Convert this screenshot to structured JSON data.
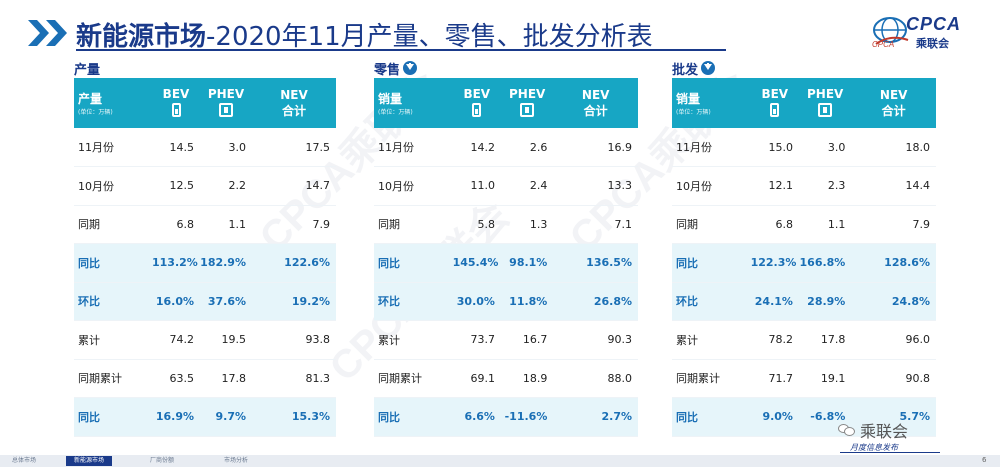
{
  "header": {
    "title_bold": "新能源市场",
    "title_rest": "-2020年11月产量、零售、批发分析表",
    "logo_text": "CPCA",
    "logo_cn": "乘联会",
    "logo_small": "CPCA"
  },
  "columns": {
    "bev": "BEV",
    "phev": "PHEV",
    "nev_top": "NEV",
    "nev_bottom": "合计",
    "unit": "(单位：万辆)"
  },
  "sections": [
    {
      "title": "产量",
      "head_label": "产量",
      "rows": [
        {
          "label": "11月份",
          "bev": "14.5",
          "phev": "3.0",
          "nev": "17.5",
          "hl": false
        },
        {
          "label": "10月份",
          "bev": "12.5",
          "phev": "2.2",
          "nev": "14.7",
          "hl": false
        },
        {
          "label": "同期",
          "bev": "6.8",
          "phev": "1.1",
          "nev": "7.9",
          "hl": false
        },
        {
          "label": "同比",
          "bev": "113.2%",
          "phev": "182.9%",
          "nev": "122.6%",
          "hl": true
        },
        {
          "label": "环比",
          "bev": "16.0%",
          "phev": "37.6%",
          "nev": "19.2%",
          "hl": true
        },
        {
          "label": "累计",
          "bev": "74.2",
          "phev": "19.5",
          "nev": "93.8",
          "hl": false
        },
        {
          "label": "同期累计",
          "bev": "63.5",
          "phev": "17.8",
          "nev": "81.3",
          "hl": false
        },
        {
          "label": "同比",
          "bev": "16.9%",
          "phev": "9.7%",
          "nev": "15.3%",
          "hl": true
        }
      ]
    },
    {
      "title": "零售",
      "head_label": "销量",
      "rows": [
        {
          "label": "11月份",
          "bev": "14.2",
          "phev": "2.6",
          "nev": "16.9",
          "hl": false
        },
        {
          "label": "10月份",
          "bev": "11.0",
          "phev": "2.4",
          "nev": "13.3",
          "hl": false
        },
        {
          "label": "同期",
          "bev": "5.8",
          "phev": "1.3",
          "nev": "7.1",
          "hl": false
        },
        {
          "label": "同比",
          "bev": "145.4%",
          "phev": "98.1%",
          "nev": "136.5%",
          "hl": true
        },
        {
          "label": "环比",
          "bev": "30.0%",
          "phev": "11.8%",
          "nev": "26.8%",
          "hl": true
        },
        {
          "label": "累计",
          "bev": "73.7",
          "phev": "16.7",
          "nev": "90.3",
          "hl": false
        },
        {
          "label": "同期累计",
          "bev": "69.1",
          "phev": "18.9",
          "nev": "88.0",
          "hl": false
        },
        {
          "label": "同比",
          "bev": "6.6%",
          "phev": "-11.6%",
          "nev": "2.7%",
          "hl": true
        }
      ]
    },
    {
      "title": "批发",
      "head_label": "销量",
      "rows": [
        {
          "label": "11月份",
          "bev": "15.0",
          "phev": "3.0",
          "nev": "18.0",
          "hl": false
        },
        {
          "label": "10月份",
          "bev": "12.1",
          "phev": "2.3",
          "nev": "14.4",
          "hl": false
        },
        {
          "label": "同期",
          "bev": "6.8",
          "phev": "1.1",
          "nev": "7.9",
          "hl": false
        },
        {
          "label": "同比",
          "bev": "122.3%",
          "phev": "166.8%",
          "nev": "128.6%",
          "hl": true
        },
        {
          "label": "环比",
          "bev": "24.1%",
          "phev": "28.9%",
          "nev": "24.8%",
          "hl": true
        },
        {
          "label": "累计",
          "bev": "78.2",
          "phev": "17.8",
          "nev": "96.0",
          "hl": false
        },
        {
          "label": "同期累计",
          "bev": "71.7",
          "phev": "19.1",
          "nev": "90.8",
          "hl": false
        },
        {
          "label": "同比",
          "bev": "9.0%",
          "phev": "-6.8%",
          "nev": "5.7%",
          "hl": true
        }
      ]
    }
  ],
  "footer": {
    "tabs": [
      "总体市场",
      "新能源市场",
      "厂商份额",
      "市场分析"
    ],
    "active_tab": 1,
    "wechat_name": "乘联会",
    "slogan": "月度信息发布",
    "page_number": "6"
  },
  "watermark_text": "CPCA乘联会",
  "colors": {
    "header_bg": "#17a6c4",
    "title": "#1a3a8a",
    "highlight_text": "#1a6fb5",
    "highlight_bg": "#e6f5fa"
  }
}
